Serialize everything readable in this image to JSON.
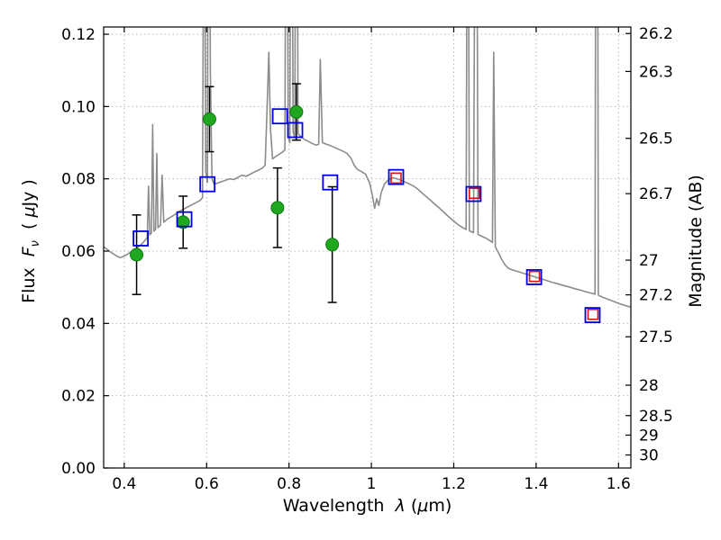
{
  "chart_data": {
    "type": "line+scatter",
    "title": "",
    "xlabel": "Wavelength λ (μm)",
    "xlabel_parts": {
      "a": "Wavelength  ",
      "b": "λ",
      "c": " (",
      "d": "μ",
      "e": "m)"
    },
    "ylabel_left": "Flux Fν ( μJy )",
    "ylabel_left_parts": {
      "a": "Flux  ",
      "b": "F",
      "c": "ν",
      "d": "  ( ",
      "e": "μ",
      "f": "Jy )"
    },
    "ylabel_right": "Magnitude (AB)",
    "xlim": [
      0.35,
      1.63
    ],
    "ylim": [
      0.0,
      0.122
    ],
    "xticks": [
      0.4,
      0.6,
      0.8,
      1.0,
      1.2,
      1.4,
      1.6
    ],
    "xtick_labels": [
      "0.4",
      "0.6",
      "0.8",
      "1",
      "1.2",
      "1.4",
      "1.6"
    ],
    "yticks_left": [
      0.0,
      0.02,
      0.04,
      0.06,
      0.08,
      0.1,
      0.12
    ],
    "ytick_left_labels": [
      "0.00",
      "0.02",
      "0.04",
      "0.06",
      "0.08",
      "0.10",
      "0.12"
    ],
    "yticks_right": [
      {
        "label": "26.2",
        "flux": 0.1202
      },
      {
        "label": "26.3",
        "flux": 0.1097
      },
      {
        "label": "26.5",
        "flux": 0.0912
      },
      {
        "label": "26.7",
        "flux": 0.0759
      },
      {
        "label": "27",
        "flux": 0.0575
      },
      {
        "label": "27.2",
        "flux": 0.0479
      },
      {
        "label": "27.5",
        "flux": 0.0363
      },
      {
        "label": "28",
        "flux": 0.0229
      },
      {
        "label": "28.5",
        "flux": 0.0145
      },
      {
        "label": "29",
        "flux": 0.0091
      },
      {
        "label": "30",
        "flux": 0.0036
      }
    ],
    "grid": true,
    "legend": "none",
    "colors": {
      "spectrum": "#8c8c8c",
      "observed": "#1fa81f",
      "observed_edge": "#0e7a0e",
      "model_blue": "#0000dd",
      "model_red": "#dd1111",
      "errorbar": "#000000",
      "grid": "#b0b0b0",
      "axis": "#000000",
      "background": "#ffffff"
    },
    "series": [
      {
        "name": "model-spectrum",
        "type": "line",
        "points": [
          [
            0.35,
            0.0612
          ],
          [
            0.358,
            0.0605
          ],
          [
            0.366,
            0.0598
          ],
          [
            0.374,
            0.0592
          ],
          [
            0.382,
            0.0586
          ],
          [
            0.39,
            0.0582
          ],
          [
            0.398,
            0.0585
          ],
          [
            0.406,
            0.059
          ],
          [
            0.414,
            0.0596
          ],
          [
            0.422,
            0.0602
          ],
          [
            0.43,
            0.0608
          ],
          [
            0.438,
            0.0615
          ],
          [
            0.446,
            0.0624
          ],
          [
            0.452,
            0.0632
          ],
          [
            0.456,
            0.0638
          ],
          [
            0.459,
            0.078
          ],
          [
            0.462,
            0.0645
          ],
          [
            0.466,
            0.065
          ],
          [
            0.469,
            0.095
          ],
          [
            0.472,
            0.0655
          ],
          [
            0.476,
            0.066
          ],
          [
            0.479,
            0.087
          ],
          [
            0.482,
            0.0665
          ],
          [
            0.488,
            0.0672
          ],
          [
            0.492,
            0.081
          ],
          [
            0.496,
            0.068
          ],
          [
            0.504,
            0.0688
          ],
          [
            0.514,
            0.0695
          ],
          [
            0.524,
            0.0702
          ],
          [
            0.534,
            0.071
          ],
          [
            0.544,
            0.0716
          ],
          [
            0.554,
            0.0722
          ],
          [
            0.564,
            0.0728
          ],
          [
            0.574,
            0.0734
          ],
          [
            0.584,
            0.074
          ],
          [
            0.59,
            0.0748
          ],
          [
            0.594,
            0.19
          ],
          [
            0.598,
            0.082
          ],
          [
            0.602,
            0.079
          ],
          [
            0.605,
            0.24
          ],
          [
            0.609,
            0.11
          ],
          [
            0.613,
            0.08
          ],
          [
            0.618,
            0.0785
          ],
          [
            0.626,
            0.0788
          ],
          [
            0.636,
            0.0792
          ],
          [
            0.646,
            0.0796
          ],
          [
            0.656,
            0.08
          ],
          [
            0.666,
            0.0798
          ],
          [
            0.676,
            0.0804
          ],
          [
            0.686,
            0.081
          ],
          [
            0.696,
            0.0807
          ],
          [
            0.706,
            0.0813
          ],
          [
            0.716,
            0.0819
          ],
          [
            0.726,
            0.0824
          ],
          [
            0.736,
            0.083
          ],
          [
            0.742,
            0.0838
          ],
          [
            0.747,
            0.1
          ],
          [
            0.751,
            0.115
          ],
          [
            0.755,
            0.094
          ],
          [
            0.76,
            0.0855
          ],
          [
            0.768,
            0.0862
          ],
          [
            0.776,
            0.0868
          ],
          [
            0.784,
            0.0874
          ],
          [
            0.79,
            0.088
          ],
          [
            0.794,
            0.22
          ],
          [
            0.798,
            0.0915
          ],
          [
            0.802,
            0.09
          ],
          [
            0.806,
            0.23
          ],
          [
            0.81,
            0.093
          ],
          [
            0.814,
            0.0912
          ],
          [
            0.818,
            0.24
          ],
          [
            0.822,
            0.0925
          ],
          [
            0.828,
            0.0918
          ],
          [
            0.836,
            0.091
          ],
          [
            0.846,
            0.0904
          ],
          [
            0.856,
            0.0898
          ],
          [
            0.866,
            0.0893
          ],
          [
            0.872,
            0.0896
          ],
          [
            0.876,
            0.113
          ],
          [
            0.881,
            0.09
          ],
          [
            0.89,
            0.0896
          ],
          [
            0.9,
            0.0892
          ],
          [
            0.91,
            0.0887
          ],
          [
            0.92,
            0.0882
          ],
          [
            0.93,
            0.0877
          ],
          [
            0.94,
            0.0871
          ],
          [
            0.95,
            0.0858
          ],
          [
            0.958,
            0.0838
          ],
          [
            0.966,
            0.0826
          ],
          [
            0.976,
            0.082
          ],
          [
            0.986,
            0.0813
          ],
          [
            0.996,
            0.0788
          ],
          [
            1.003,
            0.0752
          ],
          [
            1.008,
            0.0718
          ],
          [
            1.013,
            0.0745
          ],
          [
            1.018,
            0.0726
          ],
          [
            1.024,
            0.0762
          ],
          [
            1.032,
            0.0786
          ],
          [
            1.042,
            0.0798
          ],
          [
            1.052,
            0.0803
          ],
          [
            1.062,
            0.08
          ],
          [
            1.072,
            0.0796
          ],
          [
            1.082,
            0.0791
          ],
          [
            1.092,
            0.0786
          ],
          [
            1.102,
            0.078
          ],
          [
            1.112,
            0.0772
          ],
          [
            1.122,
            0.0762
          ],
          [
            1.132,
            0.0752
          ],
          [
            1.142,
            0.0742
          ],
          [
            1.152,
            0.0732
          ],
          [
            1.162,
            0.0722
          ],
          [
            1.172,
            0.0712
          ],
          [
            1.182,
            0.0701
          ],
          [
            1.192,
            0.0691
          ],
          [
            1.202,
            0.0681
          ],
          [
            1.212,
            0.0672
          ],
          [
            1.222,
            0.0665
          ],
          [
            1.23,
            0.066
          ],
          [
            1.234,
            0.22
          ],
          [
            1.238,
            0.0656
          ],
          [
            1.248,
            0.0651
          ],
          [
            1.254,
            0.23
          ],
          [
            1.259,
            0.0646
          ],
          [
            1.268,
            0.0641
          ],
          [
            1.278,
            0.0636
          ],
          [
            1.288,
            0.0629
          ],
          [
            1.294,
            0.0624
          ],
          [
            1.297,
            0.115
          ],
          [
            1.301,
            0.0612
          ],
          [
            1.308,
            0.0597
          ],
          [
            1.316,
            0.0578
          ],
          [
            1.324,
            0.0563
          ],
          [
            1.332,
            0.0553
          ],
          [
            1.342,
            0.0548
          ],
          [
            1.354,
            0.0544
          ],
          [
            1.368,
            0.0539
          ],
          [
            1.382,
            0.0534
          ],
          [
            1.396,
            0.0529
          ],
          [
            1.41,
            0.0524
          ],
          [
            1.424,
            0.0519
          ],
          [
            1.438,
            0.0514
          ],
          [
            1.452,
            0.051
          ],
          [
            1.466,
            0.0505
          ],
          [
            1.48,
            0.0501
          ],
          [
            1.494,
            0.0496
          ],
          [
            1.508,
            0.0492
          ],
          [
            1.522,
            0.0487
          ],
          [
            1.536,
            0.0483
          ],
          [
            1.543,
            0.0481
          ],
          [
            1.547,
            0.3
          ],
          [
            1.551,
            0.0478
          ],
          [
            1.562,
            0.0472
          ],
          [
            1.576,
            0.0466
          ],
          [
            1.59,
            0.046
          ],
          [
            1.604,
            0.0454
          ],
          [
            1.618,
            0.0449
          ],
          [
            1.63,
            0.0445
          ]
        ]
      },
      {
        "name": "observed-photometry-circles",
        "type": "scatter-circle",
        "points": [
          {
            "x": 0.43,
            "y": 0.059,
            "err": 0.011
          },
          {
            "x": 0.543,
            "y": 0.068,
            "err": 0.0072
          },
          {
            "x": 0.607,
            "y": 0.0965,
            "err": 0.009
          },
          {
            "x": 0.772,
            "y": 0.072,
            "err": 0.011
          },
          {
            "x": 0.818,
            "y": 0.0985,
            "err": 0.0078
          },
          {
            "x": 0.905,
            "y": 0.0618,
            "err": 0.016
          }
        ]
      },
      {
        "name": "model-photometry-blue-squares",
        "type": "scatter-square",
        "size": 16,
        "points": [
          [
            0.44,
            0.0635
          ],
          [
            0.546,
            0.0688
          ],
          [
            0.602,
            0.0785
          ],
          [
            0.778,
            0.0973
          ],
          [
            0.815,
            0.0935
          ],
          [
            0.9,
            0.079
          ],
          [
            1.06,
            0.0805
          ],
          [
            1.248,
            0.0758
          ],
          [
            1.395,
            0.0528
          ],
          [
            1.537,
            0.0423
          ]
        ]
      },
      {
        "name": "model-photometry-red-squares",
        "type": "scatter-square",
        "size": 11,
        "points": [
          [
            1.06,
            0.0802
          ],
          [
            1.25,
            0.076
          ],
          [
            1.396,
            0.053
          ],
          [
            1.538,
            0.0425
          ]
        ]
      }
    ]
  }
}
